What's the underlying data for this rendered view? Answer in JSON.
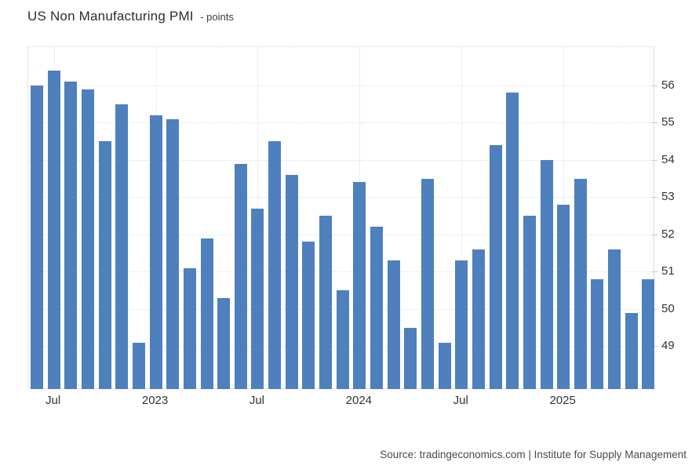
{
  "header": {
    "title": "US Non Manufacturing PMI",
    "subtitle": "- points"
  },
  "footer": {
    "source": "Source: tradingeconomics.com | Institute for Supply Management"
  },
  "colors": {
    "bar": "#4e80bd",
    "gridline": "#dedede",
    "axis_line": "#d6d6d6",
    "axis_text": "#333333",
    "title_text": "#2d2d2d",
    "source_text": "#4a4a4a",
    "background": "#ffffff"
  },
  "chart_data": {
    "type": "bar",
    "title": "US Non Manufacturing PMI",
    "ylabel": "points",
    "xlabel": "",
    "grid": true,
    "legend_position": "none",
    "y_axis_side": "right",
    "ylim": [
      47.85,
      57.05
    ],
    "y_ticks": [
      49,
      50,
      51,
      52,
      53,
      54,
      55,
      56
    ],
    "x": [
      "Jun 2022",
      "Jul 2022",
      "Aug 2022",
      "Sep 2022",
      "Oct 2022",
      "Nov 2022",
      "Dec 2022",
      "Jan 2023",
      "Feb 2023",
      "Mar 2023",
      "Apr 2023",
      "May 2023",
      "Jun 2023",
      "Jul 2023",
      "Aug 2023",
      "Sep 2023",
      "Oct 2023",
      "Nov 2023",
      "Dec 2023",
      "Jan 2024",
      "Feb 2024",
      "Mar 2024",
      "Apr 2024",
      "May 2024",
      "Jun 2024",
      "Jul 2024",
      "Aug 2024",
      "Sep 2024",
      "Oct 2024",
      "Nov 2024",
      "Dec 2024",
      "Jan 2025",
      "Feb 2025",
      "Mar 2025",
      "Apr 2025",
      "May 2025",
      "Jun 2025"
    ],
    "values": [
      56.0,
      56.4,
      56.1,
      55.9,
      54.5,
      55.5,
      49.1,
      55.2,
      55.1,
      51.1,
      51.9,
      50.3,
      53.9,
      52.7,
      54.5,
      53.6,
      51.8,
      52.5,
      50.5,
      53.4,
      52.2,
      51.3,
      49.5,
      53.5,
      49.1,
      51.3,
      51.6,
      54.4,
      55.8,
      52.5,
      54.0,
      52.8,
      53.5,
      50.8,
      51.6,
      49.9,
      50.8
    ],
    "x_tick_marks": [
      {
        "label": "Jul",
        "index": 1
      },
      {
        "label": "2023",
        "index": 7
      },
      {
        "label": "Jul",
        "index": 13
      },
      {
        "label": "2024",
        "index": 19
      },
      {
        "label": "Jul",
        "index": 25
      },
      {
        "label": "2025",
        "index": 31
      }
    ]
  }
}
